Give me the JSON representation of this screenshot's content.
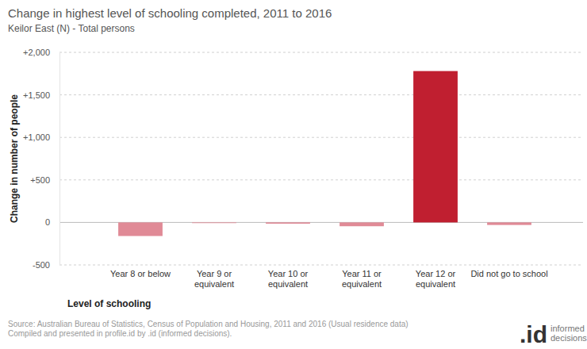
{
  "chart_data": {
    "type": "bar",
    "title": "Change in highest level of schooling completed, 2011 to 2016",
    "subtitle": "Keilor East (N) - Total persons",
    "x_label": "Level of schooling",
    "y_label": "Change in number of people",
    "categories": [
      "Year 8 or below",
      "Year 9 or equivalent",
      "Year 10 or equivalent",
      "Year 11 or equivalent",
      "Year 12 or equivalent",
      "Did not go to school"
    ],
    "values": [
      -160,
      -8,
      -15,
      -45,
      1780,
      -30
    ],
    "colors": [
      "#e08a96",
      "#e08a96",
      "#e08a96",
      "#e08a96",
      "#c01f30",
      "#e08a96"
    ],
    "ylim": [
      -500,
      2000
    ],
    "yticks": [
      -500,
      0,
      {
        "value": 500,
        "label": "+500"
      },
      {
        "value": 1000,
        "label": "+1,000"
      },
      {
        "value": 1500,
        "label": "+1,500"
      },
      {
        "value": 2000,
        "label": "+2,000"
      }
    ],
    "grid": true,
    "source": [
      "Source: Australian Bureau of Statistics, Census of Population and Housing, 2011 and 2016 (Usual residence data)",
      "Compiled and presented in profile.id by .id (informed decisions)."
    ],
    "logo": [
      ".id",
      "informed",
      "decisions"
    ]
  }
}
